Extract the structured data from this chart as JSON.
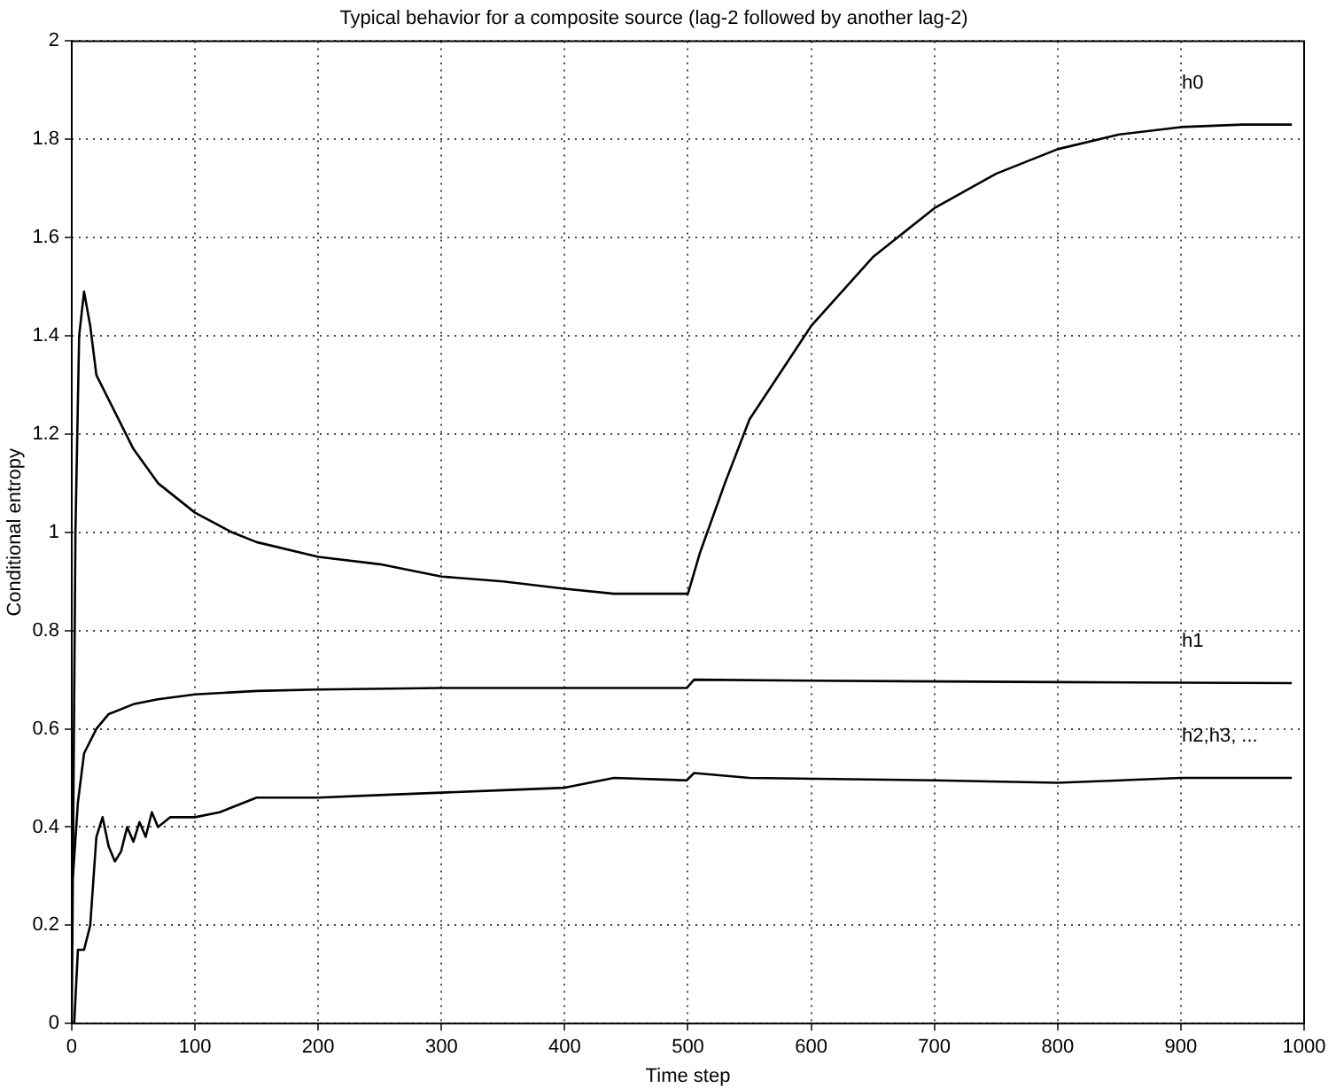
{
  "chart_data": {
    "type": "line",
    "title": "Typical behavior for a composite source (lag-2 followed by another lag-2)",
    "xlabel": "Time step",
    "ylabel": "Conditional entropy",
    "xlim": [
      0,
      1000
    ],
    "xticks": [
      0,
      100,
      200,
      300,
      400,
      500,
      600,
      700,
      800,
      900,
      1000
    ],
    "ylim": [
      0,
      2
    ],
    "yticks": [
      0,
      0.2,
      0.4,
      0.6,
      0.8,
      1,
      1.2,
      1.4,
      1.6,
      1.8,
      2
    ],
    "grid": true,
    "legend": false,
    "marker": "none",
    "line_style": "solid",
    "series": [
      {
        "name": "h0",
        "color": "#000000",
        "x": [
          0,
          3,
          6,
          10,
          15,
          20,
          30,
          40,
          50,
          70,
          100,
          130,
          150,
          200,
          250,
          300,
          350,
          400,
          440,
          499,
          500,
          510,
          530,
          550,
          600,
          650,
          700,
          750,
          800,
          850,
          900,
          950,
          990
        ],
        "values": [
          0,
          1.0,
          1.4,
          1.49,
          1.42,
          1.32,
          1.27,
          1.22,
          1.17,
          1.1,
          1.04,
          1.0,
          0.98,
          0.95,
          0.935,
          0.91,
          0.9,
          0.885,
          0.875,
          0.875,
          0.875,
          0.96,
          1.1,
          1.23,
          1.42,
          1.56,
          1.66,
          1.73,
          1.78,
          1.81,
          1.825,
          1.83,
          1.83
        ]
      },
      {
        "name": "h1",
        "color": "#000000",
        "x": [
          1,
          5,
          10,
          20,
          30,
          50,
          70,
          100,
          150,
          200,
          300,
          400,
          499,
          505,
          600,
          800,
          990
        ],
        "values": [
          0.3,
          0.45,
          0.55,
          0.6,
          0.63,
          0.65,
          0.66,
          0.67,
          0.677,
          0.68,
          0.683,
          0.683,
          0.683,
          0.7,
          0.698,
          0.695,
          0.693
        ]
      },
      {
        "name": "h2,h3, ...",
        "color": "#000000",
        "x": [
          2,
          5,
          10,
          15,
          20,
          25,
          30,
          35,
          40,
          45,
          50,
          55,
          60,
          65,
          70,
          80,
          100,
          120,
          130,
          150,
          200,
          250,
          300,
          350,
          400,
          440,
          499,
          505,
          550,
          700,
          800,
          900,
          990
        ],
        "values": [
          0,
          0.15,
          0.15,
          0.2,
          0.38,
          0.42,
          0.36,
          0.33,
          0.35,
          0.4,
          0.37,
          0.41,
          0.38,
          0.43,
          0.4,
          0.42,
          0.42,
          0.43,
          0.44,
          0.46,
          0.46,
          0.465,
          0.47,
          0.475,
          0.48,
          0.5,
          0.495,
          0.51,
          0.5,
          0.495,
          0.49,
          0.5,
          0.5
        ]
      }
    ]
  }
}
